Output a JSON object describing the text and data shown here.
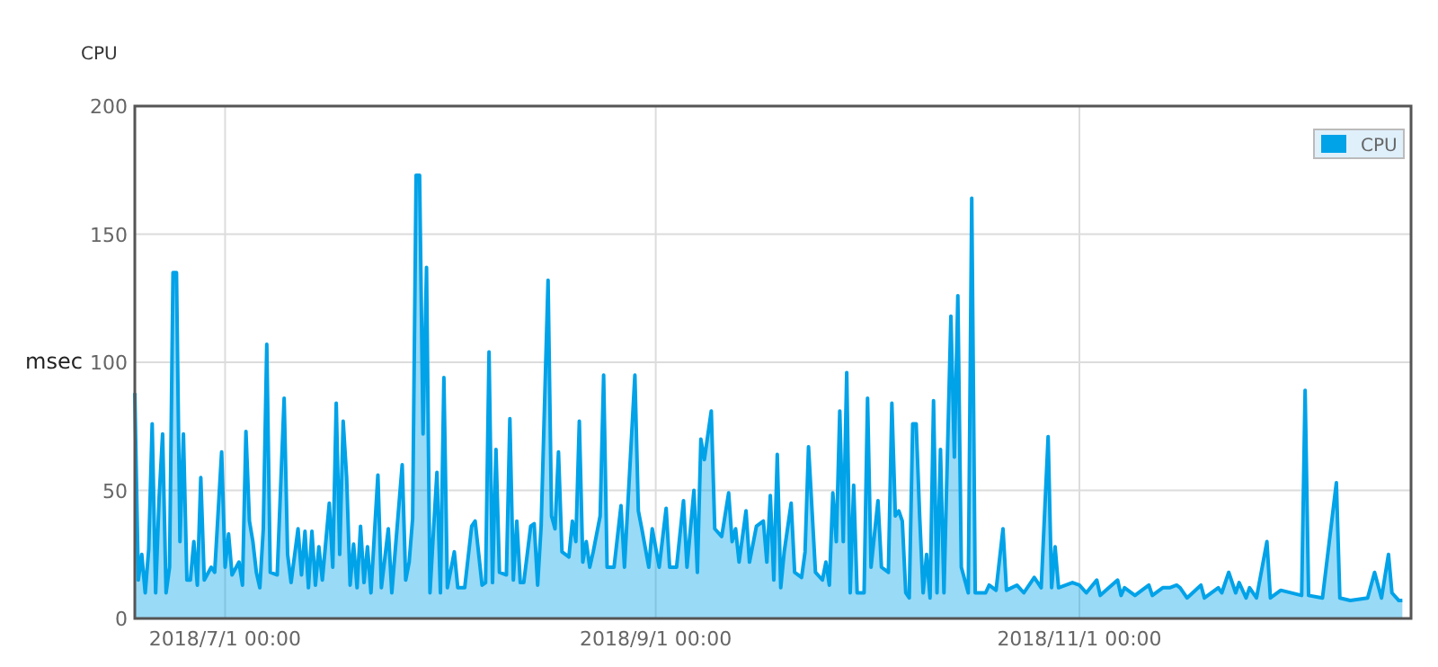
{
  "chart_data": {
    "type": "area",
    "title": "CPU",
    "ylabel": "msec",
    "xlim": [
      "2018-06-18",
      "2018-12-18T18:00"
    ],
    "xticks": [
      {
        "value": "2018-07-01",
        "label": "2018/7/1 00:00"
      },
      {
        "value": "2018-09-01",
        "label": "2018/9/1 00:00"
      },
      {
        "value": "2018-11-01",
        "label": "2018/11/1 00:00"
      }
    ],
    "ylim": [
      0,
      200
    ],
    "yticks": [
      0,
      50,
      100,
      150,
      200
    ],
    "grid": true,
    "legend": "top right",
    "x": [
      "2018-06-18",
      "2018-06-18T12:00",
      "2018-06-19",
      "2018-06-19T12:00",
      "2018-06-20",
      "2018-06-20T12:00",
      "2018-06-21",
      "2018-06-21T12:00",
      "2018-06-22",
      "2018-06-22T12:00",
      "2018-06-23",
      "2018-06-23T12:00",
      "2018-06-24",
      "2018-06-24T12:00",
      "2018-06-25",
      "2018-06-25T12:00",
      "2018-06-26",
      "2018-06-26T12:00",
      "2018-06-27",
      "2018-06-27T12:00",
      "2018-06-28",
      "2018-06-29",
      "2018-06-29T12:00",
      "2018-06-30T12:00",
      "2018-07-01",
      "2018-07-01T12:00",
      "2018-07-02",
      "2018-07-03",
      "2018-07-03T12:00",
      "2018-07-04",
      "2018-07-04T12:00",
      "2018-07-05",
      "2018-07-05T12:00",
      "2018-07-06",
      "2018-07-06T12:00",
      "2018-07-07",
      "2018-07-07T12:00",
      "2018-07-08T12:00",
      "2018-07-09T12:00",
      "2018-07-10",
      "2018-07-10T12:00",
      "2018-07-11T12:00",
      "2018-07-12",
      "2018-07-12T12:00",
      "2018-07-13",
      "2018-07-13T12:00",
      "2018-07-14",
      "2018-07-14T12:00",
      "2018-07-15",
      "2018-07-16",
      "2018-07-16T12:00",
      "2018-07-17",
      "2018-07-17T12:00",
      "2018-07-18",
      "2018-07-18T12:00",
      "2018-07-19",
      "2018-07-19T12:00",
      "2018-07-20",
      "2018-07-20T12:00",
      "2018-07-21",
      "2018-07-21T12:00",
      "2018-07-22",
      "2018-07-23",
      "2018-07-23T12:00",
      "2018-07-24T12:00",
      "2018-07-25",
      "2018-07-26T12:00",
      "2018-07-27",
      "2018-07-27T12:00",
      "2018-07-28",
      "2018-07-28T12:00",
      "2018-07-29",
      "2018-07-29T12:00",
      "2018-07-30",
      "2018-07-30T12:00",
      "2018-07-31",
      "2018-07-31T12:00",
      "2018-08-01",
      "2018-08-01T12:00",
      "2018-08-02",
      "2018-08-03",
      "2018-08-03T12:00",
      "2018-08-04T12:00",
      "2018-08-05T12:00",
      "2018-08-06",
      "2018-08-07",
      "2018-08-07T12:00",
      "2018-08-08",
      "2018-08-08T12:00",
      "2018-08-09",
      "2018-08-09T12:00",
      "2018-08-10T12:00",
      "2018-08-11",
      "2018-08-11T12:00",
      "2018-08-12",
      "2018-08-12T12:00",
      "2018-08-13",
      "2018-08-14",
      "2018-08-14T12:00",
      "2018-08-15",
      "2018-08-15T12:00",
      "2018-08-16T12:00",
      "2018-08-17",
      "2018-08-17T12:00",
      "2018-08-18",
      "2018-08-18T12:00",
      "2018-08-19T12:00",
      "2018-08-20",
      "2018-08-20T12:00",
      "2018-08-21",
      "2018-08-21T12:00",
      "2018-08-22",
      "2018-08-22T12:00",
      "2018-08-23",
      "2018-08-24",
      "2018-08-24T12:00",
      "2018-08-25",
      "2018-08-26",
      "2018-08-27",
      "2018-08-27T12:00",
      "2018-08-29",
      "2018-08-29T12:00",
      "2018-08-30",
      "2018-08-31",
      "2018-08-31T12:00",
      "2018-09-01T12:00",
      "2018-09-02T12:00",
      "2018-09-03",
      "2018-09-04",
      "2018-09-05",
      "2018-09-05T12:00",
      "2018-09-06T12:00",
      "2018-09-07",
      "2018-09-07T12:00",
      "2018-09-08",
      "2018-09-09",
      "2018-09-09T12:00",
      "2018-09-10T12:00",
      "2018-09-11T12:00",
      "2018-09-12",
      "2018-09-12T12:00",
      "2018-09-13",
      "2018-09-14",
      "2018-09-14T12:00",
      "2018-09-15T12:00",
      "2018-09-16T12:00",
      "2018-09-17",
      "2018-09-17T12:00",
      "2018-09-18",
      "2018-09-18T12:00",
      "2018-09-19",
      "2018-09-19T12:00",
      "2018-09-20T12:00",
      "2018-09-21",
      "2018-09-22",
      "2018-09-22T12:00",
      "2018-09-23",
      "2018-09-24",
      "2018-09-25",
      "2018-09-25T12:00",
      "2018-09-26",
      "2018-09-26T12:00",
      "2018-09-27",
      "2018-09-27T12:00",
      "2018-09-28",
      "2018-09-28T12:00",
      "2018-09-29",
      "2018-09-29T12:00",
      "2018-09-30",
      "2018-10-01",
      "2018-10-01T12:00",
      "2018-10-02",
      "2018-10-03",
      "2018-10-03T12:00",
      "2018-10-04T12:00",
      "2018-10-05",
      "2018-10-05T12:00",
      "2018-10-06",
      "2018-10-06T12:00",
      "2018-10-07",
      "2018-10-07T12:00",
      "2018-10-08",
      "2018-10-08T12:00",
      "2018-10-09",
      "2018-10-09T12:00",
      "2018-10-10",
      "2018-10-10T12:00",
      "2018-10-11",
      "2018-10-11T12:00",
      "2018-10-12",
      "2018-10-12T12:00",
      "2018-10-13T12:00",
      "2018-10-14",
      "2018-10-14T12:00",
      "2018-10-15",
      "2018-10-16",
      "2018-10-16T12:00",
      "2018-10-17",
      "2018-10-18T12:00",
      "2018-10-19",
      "2018-10-20",
      "2018-10-21",
      "2018-10-21T12:00",
      "2018-10-23",
      "2018-10-24",
      "2018-10-25",
      "2018-10-25T12:00",
      "2018-10-26T12:00",
      "2018-10-27T12:00",
      "2018-10-28",
      "2018-10-28T12:00",
      "2018-10-29",
      "2018-10-31",
      "2018-11-01",
      "2018-11-02",
      "2018-11-03T12:00",
      "2018-11-04",
      "2018-11-06T12:00",
      "2018-11-07",
      "2018-11-07T12:00",
      "2018-11-09",
      "2018-11-11",
      "2018-11-11T12:00",
      "2018-11-13",
      "2018-11-14",
      "2018-11-15",
      "2018-11-15T12:00",
      "2018-11-16T12:00",
      "2018-11-18T12:00",
      "2018-11-19",
      "2018-11-21",
      "2018-11-21T12:00",
      "2018-11-22T12:00",
      "2018-11-23T12:00",
      "2018-11-24",
      "2018-11-25",
      "2018-11-25T12:00",
      "2018-11-26T12:00",
      "2018-11-28",
      "2018-11-28T12:00",
      "2018-11-30",
      "2018-12-03",
      "2018-12-03T12:00",
      "2018-12-04",
      "2018-12-06",
      "2018-12-08",
      "2018-12-08T12:00",
      "2018-12-10",
      "2018-12-12T12:00",
      "2018-12-13T12:00",
      "2018-12-14T12:00",
      "2018-12-15T12:00",
      "2018-12-16",
      "2018-12-17",
      "2018-12-17T12:00"
    ],
    "series": [
      {
        "name": "CPU",
        "color": "#00a2e8",
        "values": [
          88,
          15,
          25,
          10,
          27,
          76,
          10,
          47,
          72,
          10,
          20,
          135,
          135,
          30,
          72,
          15,
          15,
          30,
          13,
          55,
          15,
          20,
          18,
          65,
          20,
          33,
          17,
          22,
          13,
          73,
          38,
          30,
          18,
          12,
          35,
          107,
          18,
          17,
          86,
          25,
          14,
          35,
          17,
          34,
          12,
          34,
          13,
          28,
          15,
          45,
          20,
          84,
          25,
          77,
          55,
          13,
          29,
          12,
          36,
          14,
          28,
          10,
          56,
          12,
          35,
          10,
          60,
          15,
          22,
          39,
          173,
          173,
          72,
          137,
          10,
          34,
          57,
          10,
          94,
          12,
          26,
          12,
          12,
          36,
          38,
          13,
          14,
          104,
          14,
          66,
          18,
          17,
          78,
          15,
          38,
          14,
          14,
          36,
          37,
          13,
          36,
          132,
          40,
          35,
          65,
          26,
          24,
          38,
          30,
          77,
          22,
          30,
          20,
          26,
          40,
          95,
          20,
          20,
          44,
          20,
          95,
          42,
          35,
          20,
          35,
          20,
          43,
          20,
          20,
          46,
          20,
          50,
          18,
          70,
          62,
          81,
          35,
          32,
          49,
          30,
          35,
          22,
          42,
          22,
          36,
          38,
          22,
          48,
          15,
          64,
          12,
          26,
          45,
          18,
          16,
          26,
          67,
          18,
          15,
          22,
          13,
          49,
          30,
          81,
          30,
          96,
          10,
          52,
          10,
          10,
          86,
          20,
          46,
          20,
          18,
          84,
          40,
          42,
          38,
          10,
          8,
          76,
          76,
          40,
          10,
          25,
          8,
          85,
          10,
          66,
          10,
          118,
          63,
          126,
          20,
          10,
          164,
          10,
          10,
          13,
          11,
          35,
          11,
          13,
          10,
          14,
          16,
          12,
          71,
          12,
          28,
          12,
          14,
          13,
          10,
          15,
          9,
          15,
          9,
          12,
          9,
          13,
          9,
          12,
          12,
          13,
          12,
          8,
          13,
          8,
          12,
          10,
          18,
          10,
          14,
          8,
          12,
          8,
          30,
          8,
          11,
          9,
          89,
          9,
          8,
          53,
          8,
          7,
          8,
          18,
          8,
          25,
          10,
          7,
          7
        ]
      }
    ]
  }
}
